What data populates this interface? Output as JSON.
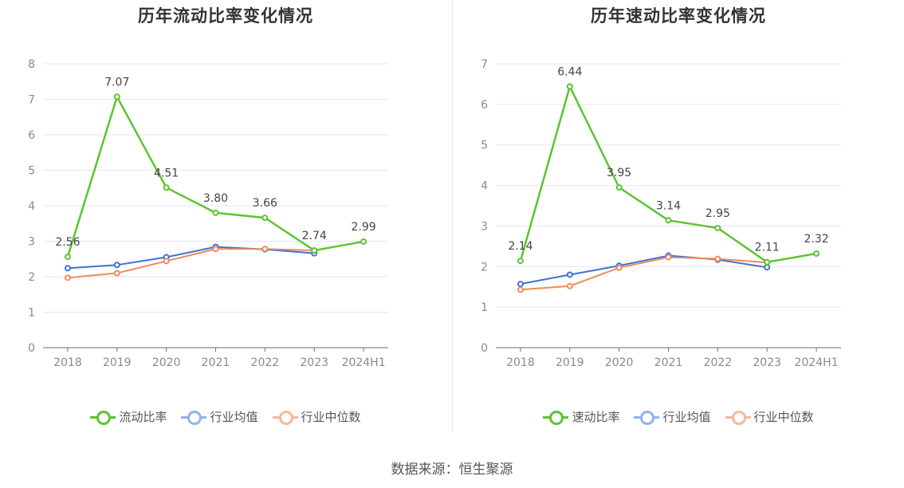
{
  "chart_data": [
    {
      "type": "line",
      "title": "历年流动比率变化情况",
      "categories": [
        "2018",
        "2019",
        "2020",
        "2021",
        "2022",
        "2023",
        "2024H1"
      ],
      "ylim": [
        0,
        8
      ],
      "yticks": [
        0,
        1,
        2,
        3,
        4,
        5,
        6,
        7,
        8
      ],
      "grid": true,
      "legend_position": "bottom",
      "series": [
        {
          "name": "流动比率",
          "color": "#5cc431",
          "values": [
            2.56,
            7.07,
            4.51,
            3.8,
            3.66,
            2.74,
            2.99
          ],
          "labels": [
            "2.56",
            "7.07",
            "4.51",
            "3.80",
            "3.66",
            "2.74",
            "2.99"
          ]
        },
        {
          "name": "行业均值",
          "color": "#3b73d4",
          "values": [
            2.24,
            2.33,
            2.55,
            2.84,
            2.77,
            2.66,
            null
          ]
        },
        {
          "name": "行业中位数",
          "color": "#f08a5d",
          "values": [
            1.97,
            2.1,
            2.44,
            2.78,
            2.78,
            2.74,
            null
          ]
        }
      ],
      "legend_colors": [
        "#5cc431",
        "#8fb2ee",
        "#f8b79c"
      ]
    },
    {
      "type": "line",
      "title": "历年速动比率变化情况",
      "categories": [
        "2018",
        "2019",
        "2020",
        "2021",
        "2022",
        "2023",
        "2024H1"
      ],
      "ylim": [
        0,
        7
      ],
      "yticks": [
        0,
        1,
        2,
        3,
        4,
        5,
        6,
        7
      ],
      "grid": true,
      "legend_position": "bottom",
      "series": [
        {
          "name": "速动比率",
          "color": "#5cc431",
          "values": [
            2.14,
            6.44,
            3.95,
            3.14,
            2.95,
            2.11,
            2.32
          ],
          "labels": [
            "2.14",
            "6.44",
            "3.95",
            "3.14",
            "2.95",
            "2.11",
            "2.32"
          ]
        },
        {
          "name": "行业均值",
          "color": "#3b73d4",
          "values": [
            1.57,
            1.8,
            2.02,
            2.27,
            2.17,
            1.98,
            null
          ]
        },
        {
          "name": "行业中位数",
          "color": "#f08a5d",
          "values": [
            1.43,
            1.52,
            1.97,
            2.23,
            2.19,
            2.1,
            null
          ]
        }
      ],
      "legend_colors": [
        "#5cc431",
        "#8fb2ee",
        "#f8b79c"
      ]
    }
  ],
  "source": "数据来源：恒生聚源"
}
